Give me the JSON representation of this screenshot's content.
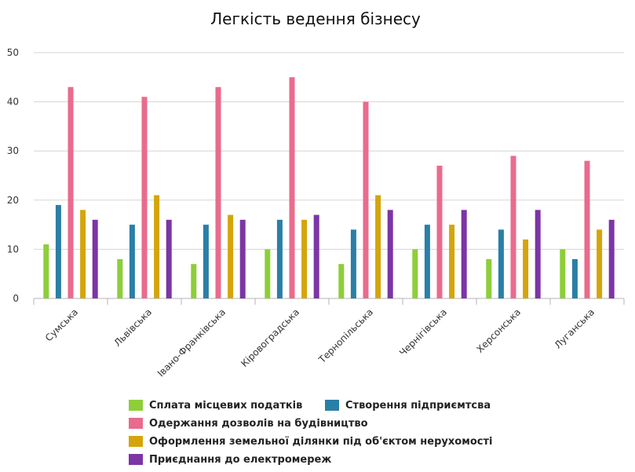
{
  "chart_data": {
    "type": "bar",
    "title": "Легкість ведення бізнесу",
    "categories": [
      "Сумська",
      "Львівська",
      "Івано-Франківська",
      "Кіровоградська",
      "Тернопільська",
      "Чернігівська",
      "Херсонська",
      "Луганська"
    ],
    "ylim": [
      0,
      50
    ],
    "yticks": [
      0,
      10,
      20,
      30,
      40,
      50
    ],
    "grid": true,
    "legend_position": "bottom",
    "series": [
      {
        "name": "Сплата місцевих податків",
        "color": "#8dce39",
        "values": [
          11,
          8,
          7,
          10,
          7,
          10,
          8,
          10
        ]
      },
      {
        "name": "Створення підприємтсва",
        "color": "#2a7fa6",
        "values": [
          19,
          15,
          15,
          16,
          14,
          15,
          14,
          8
        ]
      },
      {
        "name": "Одержання дозволів на будівництво",
        "color": "#e96b8e",
        "values": [
          43,
          41,
          43,
          45,
          40,
          27,
          29,
          28
        ]
      },
      {
        "name": "Оформлення земельної ділянки під об'єктом нерухомості",
        "color": "#d4a50b",
        "values": [
          18,
          21,
          17,
          16,
          21,
          15,
          12,
          14
        ]
      },
      {
        "name": "Приєднання до електромереж",
        "color": "#7c35a5",
        "values": [
          16,
          16,
          16,
          17,
          18,
          18,
          18,
          16
        ]
      }
    ]
  }
}
